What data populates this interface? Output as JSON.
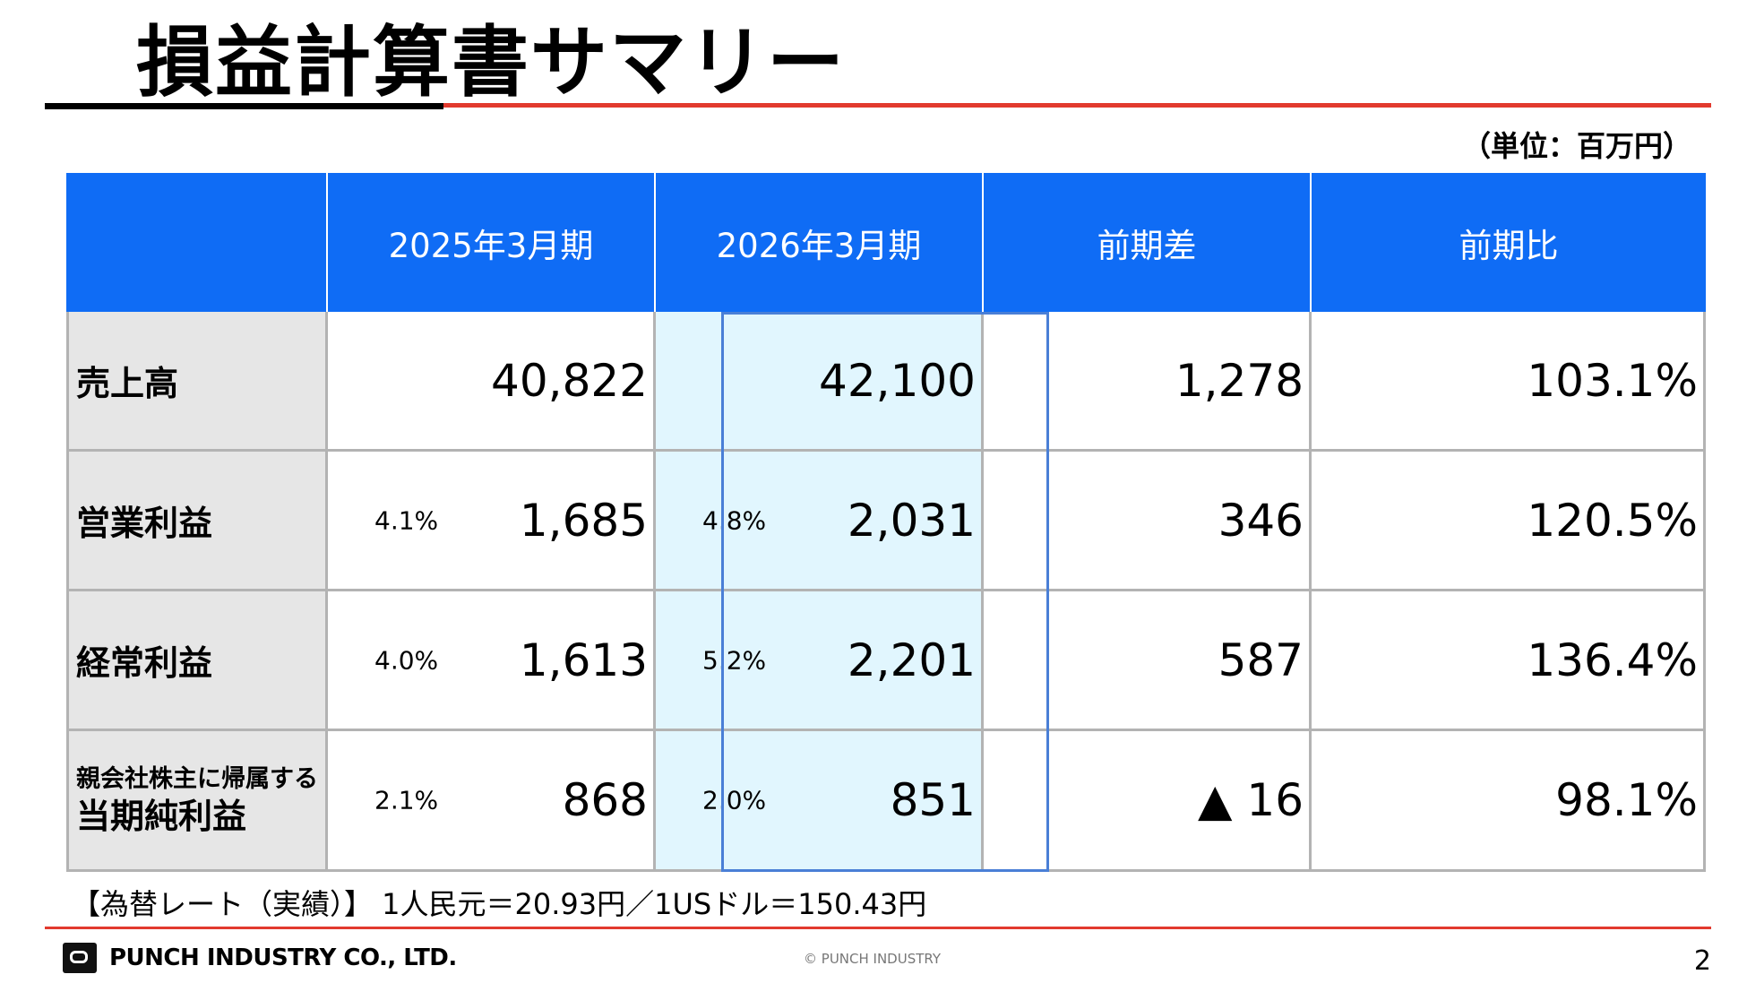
{
  "title": "損益計算書サマリー",
  "unit": "（単位：百万円）",
  "table": {
    "headers": [
      "",
      "2025年3月期",
      "2026年3月期",
      "前期差",
      "前期比"
    ],
    "rows": [
      {
        "label": "売上高",
        "fy2025": "40,822",
        "fy2025_margin": "",
        "fy2026": "42,100",
        "fy2026_margin": "",
        "diff": "1,278",
        "ratio": "103.1%"
      },
      {
        "label": "営業利益",
        "fy2025": "1,685",
        "fy2025_margin": "4.1%",
        "fy2026": "2,031",
        "fy2026_margin": "4.8%",
        "diff": "346",
        "ratio": "120.5%"
      },
      {
        "label": "経常利益",
        "fy2025": "1,613",
        "fy2025_margin": "4.0%",
        "fy2026": "2,201",
        "fy2026_margin": "5.2%",
        "diff": "587",
        "ratio": "136.4%"
      },
      {
        "label_small": "親会社株主に帰属する",
        "label": "当期純利益",
        "fy2025": "868",
        "fy2025_margin": "2.1%",
        "fy2026": "851",
        "fy2026_margin": "2.0%",
        "diff": "▲ 16",
        "ratio": "98.1%"
      }
    ]
  },
  "exchange_rate": "【為替レート（実績）】 1人民元＝20.93円／1USドル＝150.43円",
  "footer": {
    "company": "PUNCH INDUSTRY CO., LTD.",
    "copyright": "© PUNCH INDUSTRY",
    "page": "2"
  },
  "colors": {
    "header_blue": "#0f6cf5",
    "highlight_bg": "#e1f6fe",
    "accent_red": "#e23a2e",
    "label_gray": "#e6e6e6"
  }
}
